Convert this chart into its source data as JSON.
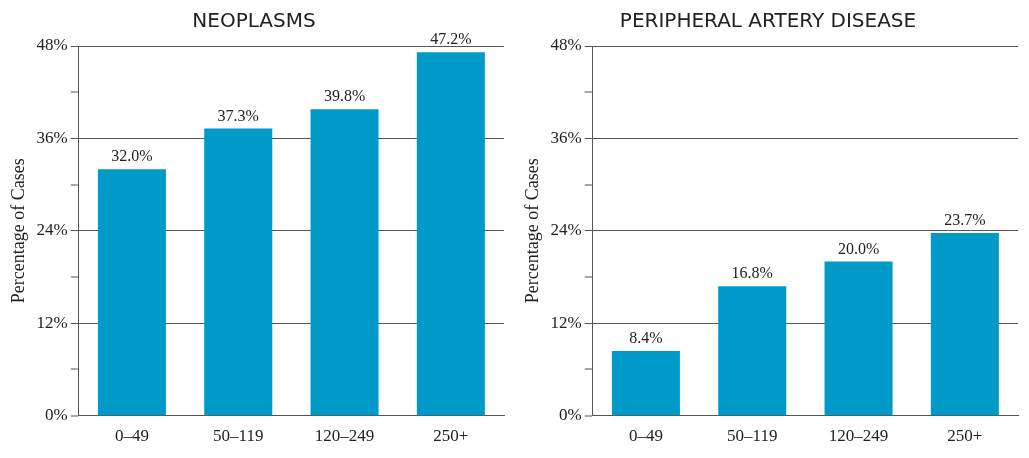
{
  "chart_data": [
    {
      "type": "bar",
      "title": "NEOPLASMS",
      "ylabel": "Percentage of Cases",
      "categories": [
        "0–49",
        "50–119",
        "120–249",
        "250+"
      ],
      "values": [
        32.0,
        37.3,
        39.8,
        47.2
      ],
      "value_labels": [
        "32.0%",
        "37.3%",
        "39.8%",
        "47.2%"
      ],
      "color": "#009ac8",
      "ylim": [
        0,
        48
      ],
      "yticks": [
        {
          "value": 0,
          "label": "0%"
        },
        {
          "value": 6,
          "label": null
        },
        {
          "value": 12,
          "label": "12%"
        },
        {
          "value": 18,
          "label": null
        },
        {
          "value": 24,
          "label": "24%"
        },
        {
          "value": 30,
          "label": null
        },
        {
          "value": 36,
          "label": "36%"
        },
        {
          "value": 42,
          "label": null
        },
        {
          "value": 48,
          "label": "48%"
        }
      ],
      "grid": "y",
      "legend": false
    },
    {
      "type": "bar",
      "title": "PERIPHERAL ARTERY DISEASE",
      "ylabel": "Percentage of Cases",
      "categories": [
        "0–49",
        "50–119",
        "120–249",
        "250+"
      ],
      "values": [
        8.4,
        16.8,
        20.0,
        23.7
      ],
      "value_labels": [
        "8.4%",
        "16.8%",
        "20.0%",
        "23.7%"
      ],
      "color": "#009ac8",
      "ylim": [
        0,
        48
      ],
      "yticks": [
        {
          "value": 0,
          "label": "0%"
        },
        {
          "value": 6,
          "label": null
        },
        {
          "value": 12,
          "label": "12%"
        },
        {
          "value": 18,
          "label": null
        },
        {
          "value": 24,
          "label": "24%"
        },
        {
          "value": 30,
          "label": null
        },
        {
          "value": 36,
          "label": "36%"
        },
        {
          "value": 42,
          "label": null
        },
        {
          "value": 48,
          "label": "48%"
        }
      ],
      "grid": "y",
      "legend": false
    }
  ]
}
